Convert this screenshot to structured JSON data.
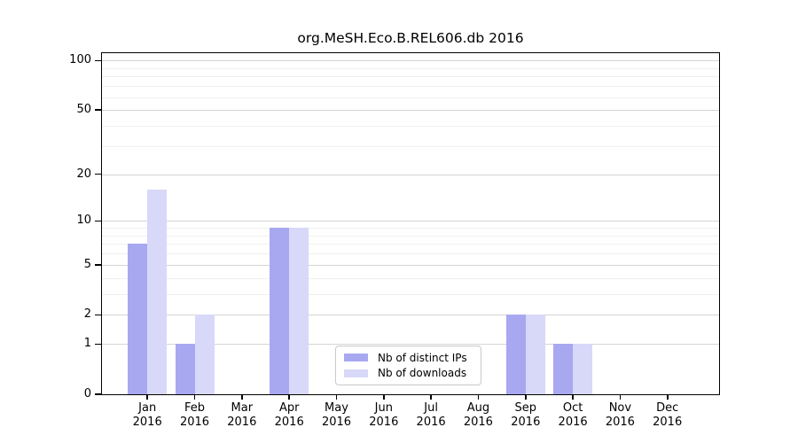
{
  "chart_data": {
    "type": "bar",
    "title": "org.MeSH.Eco.B.REL606.db 2016",
    "months": [
      "Jan",
      "Feb",
      "Mar",
      "Apr",
      "May",
      "Jun",
      "Jul",
      "Aug",
      "Sep",
      "Oct",
      "Nov",
      "Dec"
    ],
    "year": "2016",
    "series": [
      {
        "name": "Nb of distinct IPs",
        "color": "#a8a8f0",
        "values": [
          7,
          1,
          0,
          9,
          0,
          0,
          0,
          0,
          2,
          1,
          0,
          0
        ]
      },
      {
        "name": "Nb of downloads",
        "color": "#d8d8f8",
        "values": [
          16,
          2,
          0,
          9,
          0,
          0,
          0,
          0,
          2,
          1,
          0,
          0
        ]
      }
    ],
    "xlabel": "",
    "ylabel": "",
    "y_scale": "log10(1+value)",
    "ylim": [
      0,
      111
    ],
    "y_ticks_major": [
      100,
      50,
      20,
      10,
      5,
      2,
      1,
      0
    ],
    "y_ticks_minor": [
      90,
      80,
      70,
      60,
      40,
      30,
      9,
      8,
      7,
      6,
      4,
      3
    ],
    "grid": {
      "orientation": "horizontal",
      "major_color": "#d4d4d4",
      "minor_color": "#efefef"
    },
    "legend": {
      "position": "lower center"
    },
    "colors": {
      "axis": "#000000",
      "background": "#ffffff",
      "text": "#000000"
    }
  }
}
